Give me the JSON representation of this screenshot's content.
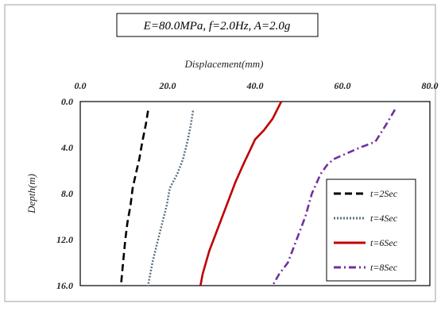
{
  "chart_data": {
    "type": "line",
    "title": "E=80.0MPa, f=2.0Hz, A=2.0g",
    "xlabel": "Displacement(mm)",
    "ylabel": "Depth(m)",
    "xlim": [
      0,
      80
    ],
    "ylim": [
      0,
      16
    ],
    "y_inverted": true,
    "x_axis_position": "top",
    "x_ticks": [
      "0.0",
      "20.0",
      "40.0",
      "60.0",
      "80.0"
    ],
    "y_ticks": [
      "0.0",
      "4.0",
      "8.0",
      "12.0",
      "16.0"
    ],
    "grid": false,
    "legend_position": "bottom-right",
    "series": [
      {
        "name": "t=2Sec",
        "color": "#000000",
        "style": "dashed",
        "points": [
          [
            15.5,
            0.8
          ],
          [
            15.0,
            2.0
          ],
          [
            14.2,
            3.5
          ],
          [
            13.5,
            5.0
          ],
          [
            12.9,
            6.0
          ],
          [
            12.0,
            7.5
          ],
          [
            11.5,
            9.0
          ],
          [
            10.8,
            10.5
          ],
          [
            10.3,
            12.0
          ],
          [
            9.8,
            14.0
          ],
          [
            9.3,
            16.0
          ]
        ]
      },
      {
        "name": "t=4Sec",
        "color": "#59707f",
        "style": "dotted",
        "points": [
          [
            25.8,
            0.8
          ],
          [
            25.3,
            2.0
          ],
          [
            24.5,
            3.5
          ],
          [
            23.5,
            5.0
          ],
          [
            22.2,
            6.3
          ],
          [
            20.5,
            7.5
          ],
          [
            19.8,
            9.0
          ],
          [
            18.8,
            10.5
          ],
          [
            17.8,
            12.0
          ],
          [
            16.5,
            14.0
          ],
          [
            15.5,
            16.0
          ]
        ]
      },
      {
        "name": "t=6Sec",
        "color": "#c00000",
        "style": "solid",
        "points": [
          [
            46.0,
            0.0
          ],
          [
            44.0,
            1.5
          ],
          [
            42.0,
            2.5
          ],
          [
            40.0,
            3.3
          ],
          [
            38.5,
            4.5
          ],
          [
            37.5,
            5.3
          ],
          [
            35.5,
            7.0
          ],
          [
            33.5,
            9.0
          ],
          [
            31.5,
            11.0
          ],
          [
            29.5,
            13.0
          ],
          [
            28.0,
            15.0
          ],
          [
            27.5,
            16.0
          ]
        ]
      },
      {
        "name": "t=8Sec",
        "color": "#7030a0",
        "style": "dash-dot",
        "points": [
          [
            72.0,
            0.7
          ],
          [
            70.0,
            2.0
          ],
          [
            67.5,
            3.5
          ],
          [
            64.0,
            4.0
          ],
          [
            61.0,
            4.5
          ],
          [
            58.0,
            5.0
          ],
          [
            56.5,
            5.5
          ],
          [
            55.0,
            6.3
          ],
          [
            53.0,
            8.0
          ],
          [
            51.5,
            10.0
          ],
          [
            49.5,
            12.0
          ],
          [
            47.5,
            14.0
          ],
          [
            45.5,
            15.0
          ],
          [
            44.0,
            16.0
          ]
        ]
      }
    ]
  }
}
